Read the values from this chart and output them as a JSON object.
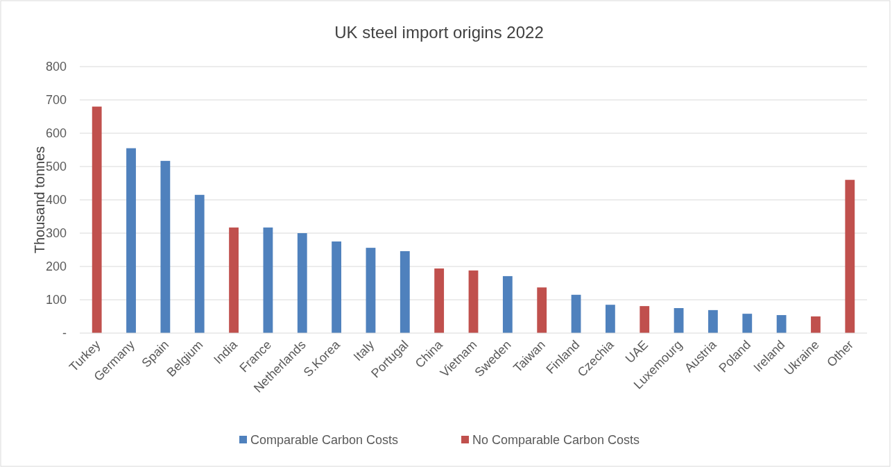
{
  "chart_data": {
    "type": "bar",
    "title": "UK steel import origins 2022",
    "ylabel": "Thousand tonnes",
    "categories": [
      "Turkey",
      "Germany",
      "Spain",
      "Belgium",
      "India",
      "France",
      "Netherlands",
      "S.Korea",
      "Italy",
      "Portugal",
      "China",
      "Vietnam",
      "Sweden",
      "Taiwan",
      "Finland",
      "Czechia",
      "UAE",
      "Luxemourg",
      "Austria",
      "Poland",
      "Ireland",
      "Ukraine",
      "Other"
    ],
    "series": [
      {
        "name": "Comparable Carbon Costs",
        "color": "#4f81bd",
        "values": [
          null,
          555,
          517,
          415,
          null,
          317,
          300,
          275,
          256,
          246,
          null,
          null,
          171,
          null,
          115,
          85,
          null,
          75,
          69,
          58,
          54,
          null,
          null
        ]
      },
      {
        "name": "No Comparable Carbon Costs",
        "color": "#c0504d",
        "values": [
          680,
          null,
          null,
          null,
          317,
          null,
          null,
          null,
          null,
          null,
          194,
          188,
          null,
          137,
          null,
          null,
          81,
          null,
          null,
          null,
          null,
          50,
          460
        ]
      }
    ],
    "ylim": [
      0,
      800
    ],
    "yticks": [
      {
        "value": 0,
        "label": "-"
      },
      100,
      200,
      300,
      400,
      500,
      600,
      700,
      800
    ],
    "grid": "y",
    "legend": "bottom"
  }
}
